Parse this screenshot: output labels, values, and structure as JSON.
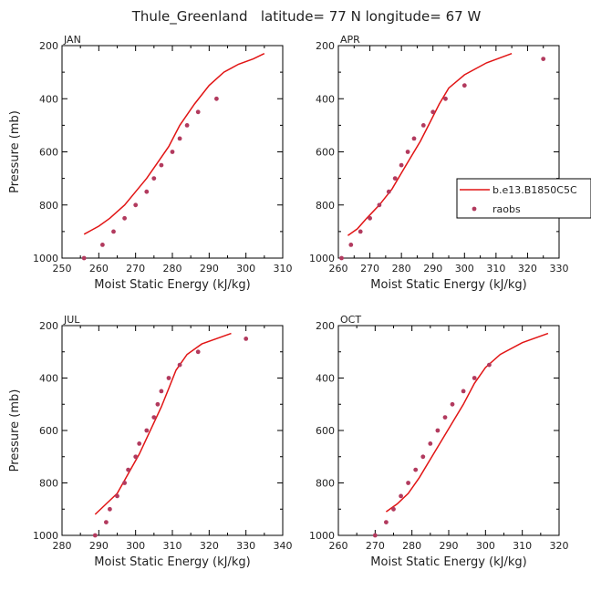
{
  "title": "Thule_Greenland   latitude= 77 N longitude= 67 W",
  "colors": {
    "model": "#e11414",
    "obs": "#b23a5e"
  },
  "legend": {
    "model_label": "b.e13.B1850C5C",
    "obs_label": "raobs"
  },
  "chart_data": [
    {
      "type": "line",
      "panel": "JAN",
      "xlabel": "Moist Static Energy (kJ/kg)",
      "ylabel": "Pressure (mb)",
      "xlim": [
        250,
        310
      ],
      "ylim": [
        1000,
        200
      ],
      "xticks": [
        250,
        260,
        270,
        280,
        290,
        300,
        310
      ],
      "yticks": [
        200,
        400,
        600,
        800,
        1000
      ],
      "model": [
        [
          305,
          230
        ],
        [
          302,
          250
        ],
        [
          298,
          270
        ],
        [
          294,
          300
        ],
        [
          290,
          350
        ],
        [
          286,
          420
        ],
        [
          282,
          500
        ],
        [
          279,
          580
        ],
        [
          276,
          640
        ],
        [
          273,
          700
        ],
        [
          270,
          750
        ],
        [
          267,
          800
        ],
        [
          263,
          850
        ],
        [
          260,
          880
        ],
        [
          258,
          895
        ],
        [
          256,
          910
        ]
      ],
      "obs": [
        [
          256,
          1000
        ],
        [
          261,
          950
        ],
        [
          264,
          900
        ],
        [
          267,
          850
        ],
        [
          270,
          800
        ],
        [
          273,
          750
        ],
        [
          275,
          700
        ],
        [
          277,
          650
        ],
        [
          280,
          600
        ],
        [
          282,
          550
        ],
        [
          284,
          500
        ],
        [
          287,
          450
        ],
        [
          292,
          400
        ]
      ]
    },
    {
      "type": "line",
      "panel": "APR",
      "xlabel": "Moist Static Energy (kJ/kg)",
      "ylabel": "",
      "xlim": [
        260,
        330
      ],
      "ylim": [
        1000,
        200
      ],
      "xticks": [
        260,
        270,
        280,
        290,
        300,
        310,
        320,
        330
      ],
      "yticks": [
        200,
        400,
        600,
        800,
        1000
      ],
      "model": [
        [
          315,
          230
        ],
        [
          307,
          265
        ],
        [
          300,
          310
        ],
        [
          295,
          360
        ],
        [
          292,
          420
        ],
        [
          289,
          490
        ],
        [
          286,
          560
        ],
        [
          283,
          620
        ],
        [
          280,
          680
        ],
        [
          277,
          740
        ],
        [
          273,
          800
        ],
        [
          269,
          850
        ],
        [
          266,
          890
        ],
        [
          263,
          915
        ]
      ],
      "obs": [
        [
          261,
          1000
        ],
        [
          264,
          950
        ],
        [
          267,
          900
        ],
        [
          270,
          850
        ],
        [
          273,
          800
        ],
        [
          276,
          750
        ],
        [
          278,
          700
        ],
        [
          280,
          650
        ],
        [
          282,
          600
        ],
        [
          284,
          550
        ],
        [
          287,
          500
        ],
        [
          290,
          450
        ],
        [
          294,
          400
        ],
        [
          300,
          350
        ],
        [
          325,
          250
        ]
      ]
    },
    {
      "type": "line",
      "panel": "JUL",
      "xlabel": "Moist Static Energy (kJ/kg)",
      "ylabel": "Pressure (mb)",
      "xlim": [
        280,
        340
      ],
      "ylim": [
        1000,
        200
      ],
      "xticks": [
        280,
        290,
        300,
        310,
        320,
        330,
        340
      ],
      "yticks": [
        200,
        400,
        600,
        800,
        1000
      ],
      "model": [
        [
          326,
          230
        ],
        [
          318,
          270
        ],
        [
          314,
          310
        ],
        [
          311,
          370
        ],
        [
          309,
          440
        ],
        [
          307,
          510
        ],
        [
          305,
          570
        ],
        [
          303,
          630
        ],
        [
          301,
          690
        ],
        [
          299,
          740
        ],
        [
          297,
          790
        ],
        [
          295,
          840
        ],
        [
          292,
          880
        ],
        [
          289,
          920
        ]
      ],
      "obs": [
        [
          289,
          1000
        ],
        [
          292,
          950
        ],
        [
          293,
          900
        ],
        [
          295,
          850
        ],
        [
          297,
          800
        ],
        [
          298,
          750
        ],
        [
          300,
          700
        ],
        [
          301,
          650
        ],
        [
          303,
          600
        ],
        [
          305,
          550
        ],
        [
          306,
          500
        ],
        [
          307,
          450
        ],
        [
          309,
          400
        ],
        [
          312,
          350
        ],
        [
          317,
          300
        ],
        [
          330,
          250
        ]
      ]
    },
    {
      "type": "line",
      "panel": "OCT",
      "xlabel": "Moist Static Energy (kJ/kg)",
      "ylabel": "",
      "xlim": [
        260,
        320
      ],
      "ylim": [
        1000,
        200
      ],
      "xticks": [
        260,
        270,
        280,
        290,
        300,
        310,
        320
      ],
      "yticks": [
        200,
        400,
        600,
        800,
        1000
      ],
      "model": [
        [
          317,
          230
        ],
        [
          310,
          265
        ],
        [
          304,
          310
        ],
        [
          300,
          360
        ],
        [
          297,
          420
        ],
        [
          294,
          500
        ],
        [
          291,
          570
        ],
        [
          288,
          640
        ],
        [
          285,
          710
        ],
        [
          282,
          780
        ],
        [
          279,
          840
        ],
        [
          276,
          880
        ],
        [
          273,
          910
        ]
      ],
      "obs": [
        [
          270,
          1000
        ],
        [
          273,
          950
        ],
        [
          275,
          900
        ],
        [
          277,
          850
        ],
        [
          279,
          800
        ],
        [
          281,
          750
        ],
        [
          283,
          700
        ],
        [
          285,
          650
        ],
        [
          287,
          600
        ],
        [
          289,
          550
        ],
        [
          291,
          500
        ],
        [
          294,
          450
        ],
        [
          297,
          400
        ],
        [
          301,
          350
        ]
      ]
    }
  ]
}
